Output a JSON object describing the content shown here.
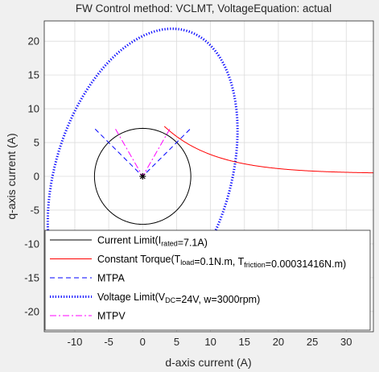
{
  "chart_data": {
    "type": "line",
    "title": "FW Control method: VCLMT, VoltageEquation: actual",
    "xlabel": "d-axis current (A)",
    "ylabel": "q-axis current (A)",
    "xlim": [
      -14.5,
      34
    ],
    "ylim": [
      -23,
      23
    ],
    "xticks": [
      -10,
      -5,
      0,
      5,
      10,
      15,
      20,
      25,
      30
    ],
    "yticks": [
      -20,
      -15,
      -10,
      -5,
      0,
      5,
      10,
      15,
      20
    ],
    "grid": true,
    "legend_position": "bottom-right",
    "current_limit": {
      "center": [
        0,
        0
      ],
      "radius": 7.1
    },
    "voltage_limit": {
      "center": [
        0,
        0
      ],
      "semi_axis_d": 12.9,
      "semi_axis_q": 22.5,
      "tilt_deg": -17
    },
    "constant_torque": {
      "k": 7.0,
      "x_from": 3.2,
      "x_to": 34
    },
    "mtpa_lines": [
      {
        "x": [
          -7,
          0,
          7
        ],
        "y": [
          7,
          0,
          7
        ]
      }
    ],
    "mtpv_lines": [
      {
        "x": [
          -4,
          0,
          4
        ],
        "y": [
          7,
          0,
          7
        ]
      }
    ],
    "operating_point": {
      "x": 0,
      "y": 0
    },
    "colors": {
      "current_limit": "#000000",
      "constant_torque": "#ff0000",
      "mtpa": "#0000ff",
      "voltage_limit": "#0000ff",
      "mtpv": "#ff00ff"
    },
    "legend": [
      {
        "key": "current_limit",
        "text": "Current Limit(I",
        "sub": "rated",
        "tail": "=7.1A)"
      },
      {
        "key": "constant_torque",
        "text": "Constant Torque(T",
        "sub": "load",
        "mid": "=0.1N.m, T",
        "sub2": "friction",
        "tail": "=0.00031416N.m)"
      },
      {
        "key": "mtpa",
        "text": "MTPA"
      },
      {
        "key": "voltage_limit",
        "text": "Voltage Limit(V",
        "sub": "DC",
        "tail": "=24V, w=3000rpm)"
      },
      {
        "key": "mtpv",
        "text": "MTPV"
      }
    ]
  }
}
